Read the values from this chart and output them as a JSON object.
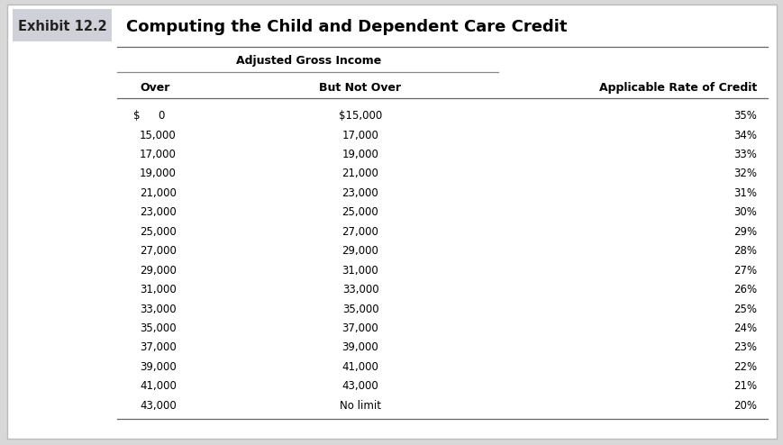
{
  "exhibit_label": "Exhibit 12.2",
  "title": "Computing the Child and Dependent Care Credit",
  "subheader": "Adjusted Gross Income",
  "col_headers": [
    "Over",
    "But Not Over",
    "Applicable Rate of Credit"
  ],
  "rows": [
    [
      "$    0",
      "$15,000",
      "35%"
    ],
    [
      "15,000",
      "17,000",
      "34%"
    ],
    [
      "17,000",
      "19,000",
      "33%"
    ],
    [
      "19,000",
      "21,000",
      "32%"
    ],
    [
      "21,000",
      "23,000",
      "31%"
    ],
    [
      "23,000",
      "25,000",
      "30%"
    ],
    [
      "25,000",
      "27,000",
      "29%"
    ],
    [
      "27,000",
      "29,000",
      "28%"
    ],
    [
      "29,000",
      "31,000",
      "27%"
    ],
    [
      "31,000",
      "33,000",
      "26%"
    ],
    [
      "33,000",
      "35,000",
      "25%"
    ],
    [
      "35,000",
      "37,000",
      "24%"
    ],
    [
      "37,000",
      "39,000",
      "23%"
    ],
    [
      "39,000",
      "41,000",
      "22%"
    ],
    [
      "41,000",
      "43,000",
      "21%"
    ],
    [
      "43,000",
      "No limit",
      "20%"
    ]
  ],
  "bg_color": "#d8d8d8",
  "table_bg": "#ffffff",
  "exhibit_bg": "#d0d0d8",
  "exhibit_text_color": "#222222",
  "title_color": "#000000",
  "header_color": "#000000",
  "row_text_color": "#000000",
  "line_color": "#666666",
  "subheader_line_color": "#888888"
}
